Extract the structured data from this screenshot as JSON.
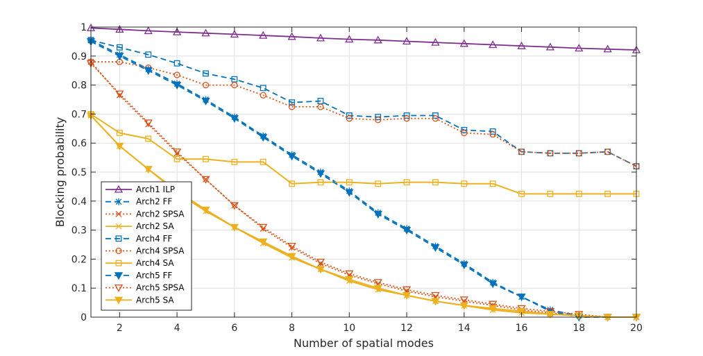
{
  "chart_data": {
    "type": "line",
    "xlabel": "Number of spatial modes",
    "ylabel": "Blocking probability",
    "xlim": [
      1,
      20
    ],
    "ylim": [
      0,
      1
    ],
    "x_ticks": [
      2,
      4,
      6,
      8,
      10,
      12,
      14,
      16,
      18,
      20
    ],
    "y_ticks": [
      0,
      0.1,
      0.2,
      0.3,
      0.4,
      0.5,
      0.6,
      0.7,
      0.8,
      0.9,
      1
    ],
    "grid": true,
    "legend_position": "bottom-left",
    "x": [
      1,
      2,
      3,
      4,
      5,
      6,
      7,
      8,
      9,
      10,
      11,
      12,
      13,
      14,
      15,
      16,
      17,
      18,
      19,
      20
    ],
    "series": [
      {
        "name": "Arch1 ILP",
        "color": "#7e2f8e",
        "dash": "solid",
        "marker": "triangle-up",
        "filled": false,
        "values": [
          0.997,
          0.992,
          0.987,
          0.983,
          0.979,
          0.975,
          0.971,
          0.967,
          0.962,
          0.958,
          0.955,
          0.951,
          0.947,
          0.943,
          0.939,
          0.935,
          0.931,
          0.927,
          0.924,
          0.921
        ]
      },
      {
        "name": "Arch2 FF",
        "color": "#0072bd",
        "dash": "dashed",
        "marker": "asterisk",
        "filled": false,
        "values": [
          0.955,
          0.905,
          0.855,
          0.805,
          0.75,
          0.69,
          0.625,
          0.56,
          0.5,
          0.435,
          0.36,
          0.305,
          0.245,
          0.185,
          0.12,
          0.07,
          0.025,
          0.005,
          0.0,
          0.0
        ]
      },
      {
        "name": "Arch2 SPSA",
        "color": "#d95319",
        "dash": "dotted",
        "marker": "x",
        "filled": false,
        "values": [
          0.88,
          0.765,
          0.665,
          0.565,
          0.475,
          0.385,
          0.305,
          0.24,
          0.185,
          0.145,
          0.115,
          0.09,
          0.07,
          0.055,
          0.04,
          0.025,
          0.015,
          0.005,
          0.0,
          0.0
        ]
      },
      {
        "name": "Arch2 SA",
        "color": "#edb120",
        "dash": "solid",
        "marker": "x",
        "filled": false,
        "values": [
          0.695,
          0.59,
          0.51,
          0.43,
          0.365,
          0.31,
          0.255,
          0.205,
          0.165,
          0.125,
          0.095,
          0.075,
          0.055,
          0.04,
          0.025,
          0.015,
          0.01,
          0.005,
          0.0,
          0.0
        ]
      },
      {
        "name": "Arch4 FF",
        "color": "#0072bd",
        "dash": "dashed",
        "marker": "square",
        "filled": false,
        "values": [
          0.955,
          0.93,
          0.905,
          0.875,
          0.84,
          0.82,
          0.79,
          0.74,
          0.745,
          0.695,
          0.69,
          0.695,
          0.695,
          0.645,
          0.64,
          0.57,
          0.565,
          0.565,
          0.57,
          0.52
        ]
      },
      {
        "name": "Arch4 SPSA",
        "color": "#d95319",
        "dash": "dotted",
        "marker": "circle",
        "filled": false,
        "values": [
          0.88,
          0.88,
          0.86,
          0.835,
          0.8,
          0.8,
          0.765,
          0.725,
          0.725,
          0.685,
          0.68,
          0.685,
          0.685,
          0.635,
          0.63,
          0.57,
          0.565,
          0.565,
          0.57,
          0.52
        ]
      },
      {
        "name": "Arch4 SA",
        "color": "#edb120",
        "dash": "solid",
        "marker": "square",
        "filled": false,
        "values": [
          0.7,
          0.635,
          0.615,
          0.545,
          0.545,
          0.535,
          0.535,
          0.46,
          0.465,
          0.465,
          0.46,
          0.465,
          0.465,
          0.46,
          0.46,
          0.425,
          0.425,
          0.425,
          0.425,
          0.425
        ]
      },
      {
        "name": "Arch5 FF",
        "color": "#0072bd",
        "dash": "dashed",
        "marker": "triangle-down",
        "filled": true,
        "values": [
          0.95,
          0.9,
          0.85,
          0.8,
          0.745,
          0.685,
          0.62,
          0.555,
          0.495,
          0.43,
          0.355,
          0.3,
          0.24,
          0.18,
          0.115,
          0.07,
          0.02,
          0.0,
          0.0,
          0.0
        ]
      },
      {
        "name": "Arch5 SPSA",
        "color": "#d95319",
        "dash": "dotted",
        "marker": "triangle-down",
        "filled": false,
        "values": [
          0.875,
          0.77,
          0.67,
          0.57,
          0.475,
          0.385,
          0.31,
          0.245,
          0.19,
          0.15,
          0.12,
          0.095,
          0.075,
          0.06,
          0.045,
          0.03,
          0.02,
          0.01,
          0.0,
          0.0
        ]
      },
      {
        "name": "Arch5 SA",
        "color": "#edb120",
        "dash": "solid",
        "marker": "triangle-down",
        "filled": true,
        "values": [
          0.695,
          0.59,
          0.51,
          0.435,
          0.37,
          0.31,
          0.26,
          0.21,
          0.165,
          0.13,
          0.1,
          0.075,
          0.055,
          0.04,
          0.03,
          0.02,
          0.01,
          0.005,
          0.0,
          0.0
        ]
      }
    ]
  }
}
